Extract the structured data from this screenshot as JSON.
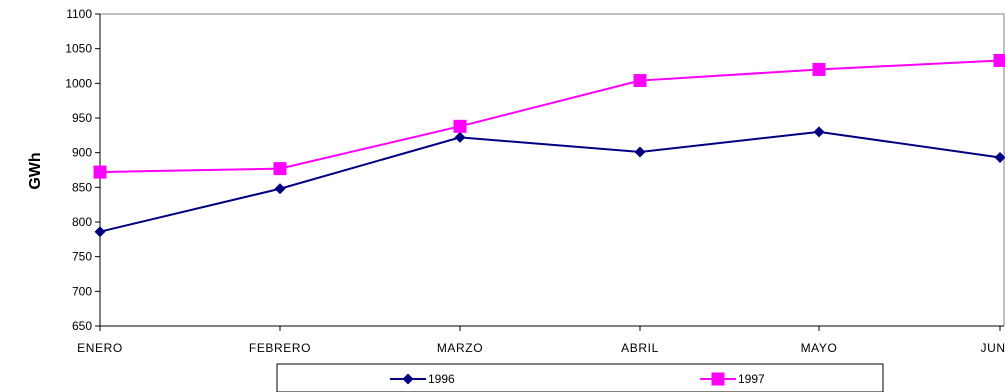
{
  "chart_data": {
    "type": "line",
    "title": "",
    "xlabel": "",
    "ylabel": "GWh",
    "categories": [
      "ENERO",
      "FEBRERO",
      "MARZO",
      "ABRIL",
      "MAYO",
      "JUNIO"
    ],
    "ylim": [
      650,
      1100
    ],
    "yticks": [
      650,
      700,
      750,
      800,
      850,
      900,
      950,
      1000,
      1050,
      1100
    ],
    "grid": false,
    "legend_position": "bottom",
    "series": [
      {
        "name": "1996",
        "values": [
          786,
          848,
          922,
          901,
          930,
          893
        ],
        "color": "#000080",
        "marker": "diamond"
      },
      {
        "name": "1997",
        "values": [
          872,
          877,
          938,
          1004,
          1020,
          1033
        ],
        "color": "#ff00ff",
        "marker": "square"
      }
    ]
  }
}
